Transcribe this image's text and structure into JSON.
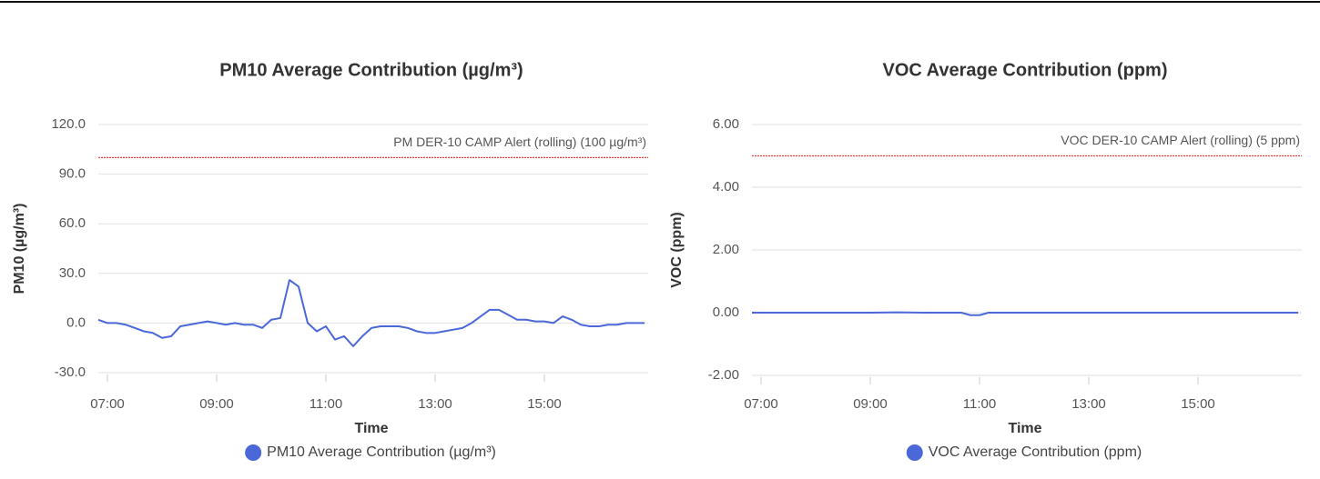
{
  "chart_data": [
    {
      "type": "line",
      "title": "PM10 Average Contribution (µg/m³)",
      "x_label": "Time",
      "y_label": "PM10 (µg/m³)",
      "x": [
        "06:50",
        "07:00",
        "07:10",
        "07:20",
        "07:30",
        "07:40",
        "07:50",
        "08:00",
        "08:10",
        "08:20",
        "08:30",
        "08:40",
        "08:50",
        "09:00",
        "09:10",
        "09:20",
        "09:30",
        "09:40",
        "09:50",
        "10:00",
        "10:10",
        "10:20",
        "10:30",
        "10:40",
        "10:50",
        "11:00",
        "11:10",
        "11:20",
        "11:30",
        "11:40",
        "11:50",
        "12:00",
        "12:10",
        "12:20",
        "12:30",
        "12:40",
        "12:50",
        "13:00",
        "13:10",
        "13:20",
        "13:30",
        "13:40",
        "13:50",
        "14:00",
        "14:10",
        "14:20",
        "14:30",
        "14:40",
        "14:50",
        "15:00",
        "15:10",
        "15:20",
        "15:30",
        "15:40",
        "15:50",
        "16:00",
        "16:10",
        "16:20",
        "16:30",
        "16:40",
        "16:50"
      ],
      "series": [
        {
          "name": "PM10 Average Contribution (µg/m³)",
          "color": "#4a68d8",
          "values": [
            2,
            0,
            0,
            -1,
            -3,
            -5,
            -6,
            -9,
            -8,
            -2,
            -1,
            0,
            1,
            0,
            -1,
            0,
            -1,
            -1,
            -3,
            2,
            3,
            26,
            22,
            0,
            -5,
            -2,
            -10,
            -8,
            -14,
            -8,
            -3,
            -2,
            -2,
            -2,
            -3,
            -5,
            -6,
            -6,
            -5,
            -4,
            -3,
            0,
            4,
            8,
            8,
            5,
            2,
            2,
            1,
            1,
            0,
            4,
            2,
            -1,
            -2,
            -2,
            -1,
            -1,
            0,
            0,
            0
          ]
        }
      ],
      "thresholds": [
        {
          "value": 100,
          "label": "PM DER-10 CAMP Alert (rolling) (100 µg/m³)",
          "color": "#f04040"
        }
      ],
      "xlim": [
        "06:50",
        "16:50"
      ],
      "xticks": [
        "07:00",
        "09:00",
        "11:00",
        "13:00",
        "15:00"
      ],
      "ylim": [
        -30,
        120
      ],
      "yticks": [
        {
          "value": -30,
          "label": "-30.0"
        },
        {
          "value": 0,
          "label": "0.0"
        },
        {
          "value": 30,
          "label": "30.0"
        },
        {
          "value": 60,
          "label": "60.0"
        },
        {
          "value": 90,
          "label": "90.0"
        },
        {
          "value": 120,
          "label": "120.0"
        }
      ],
      "grid": true
    },
    {
      "type": "line",
      "title": "VOC Average Contribution (ppm)",
      "x_label": "Time",
      "y_label": "VOC (ppm)",
      "x": [
        "06:50",
        "07:00",
        "07:30",
        "08:00",
        "08:30",
        "09:00",
        "09:30",
        "10:00",
        "10:30",
        "10:40",
        "10:50",
        "11:00",
        "11:10",
        "11:30",
        "12:00",
        "12:30",
        "13:00",
        "13:30",
        "14:00",
        "14:30",
        "15:00",
        "15:30",
        "16:00",
        "16:30",
        "16:50"
      ],
      "series": [
        {
          "name": "VOC Average Contribution (ppm)",
          "color": "#4a68d8",
          "values": [
            0,
            0,
            0,
            0,
            0,
            0,
            0.01,
            0,
            0,
            0,
            -0.08,
            -0.08,
            0,
            0,
            0,
            0,
            0,
            0,
            0,
            0,
            0,
            0,
            0,
            0,
            0
          ]
        }
      ],
      "thresholds": [
        {
          "value": 5,
          "label": "VOC DER-10 CAMP Alert (rolling) (5 ppm)",
          "color": "#f04040"
        }
      ],
      "xlim": [
        "06:50",
        "16:50"
      ],
      "xticks": [
        "07:00",
        "09:00",
        "11:00",
        "13:00",
        "15:00"
      ],
      "ylim": [
        -2,
        6
      ],
      "yticks": [
        {
          "value": -2,
          "label": "-2.00"
        },
        {
          "value": 0,
          "label": "0.00"
        },
        {
          "value": 2,
          "label": "2.00"
        },
        {
          "value": 4,
          "label": "4.00"
        },
        {
          "value": 6,
          "label": "6.00"
        }
      ],
      "grid": true
    }
  ]
}
